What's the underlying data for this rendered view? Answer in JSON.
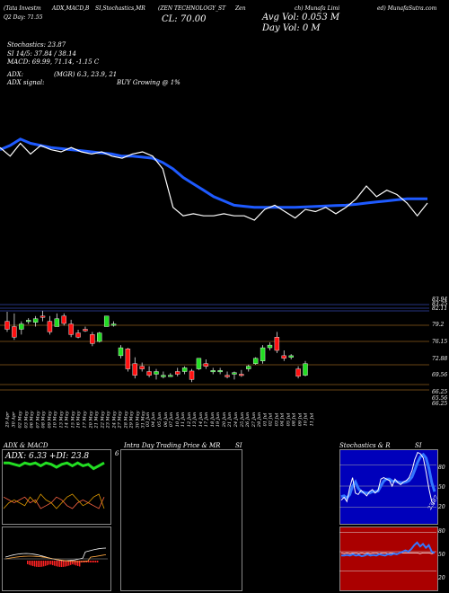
{
  "header": {
    "line1": [
      "(Tata Investm",
      "ADX,MACD,B",
      "SI,Stochastics,MR",
      "(ZEN TECHNOLOGY_ST",
      "Zen",
      "ch) Munafa Limi",
      "ed) MunafaSutra.com"
    ],
    "line2": "Q2  Day: 71.55",
    "cl": "CL: 70.00",
    "avg_vol": "Avg Vol: 0.053 M",
    "day_vol": "Day Vol: 0   M",
    "stochastics": "Stochastics: 23.87",
    "si": "SI 14/5: 37.84 / 38.14",
    "macd": "MACD: 69.99, 71.14, -1.15 C",
    "adx": "ADX:",
    "adx_mid": "(MGR) 6.3, 23.9, 21",
    "adx_signal": "ADX  signal:",
    "buy_text": "BUY Growing @ 1%"
  },
  "price_labels": [
    "83.94",
    "83.25",
    "82.11",
    "79.2",
    "76.15",
    "72.88",
    "69.56",
    "66.25",
    "65.56",
    "66.25"
  ],
  "date_labels": [
    "29 Apr",
    "30 Apr",
    "02 May",
    "03 May",
    "06 May",
    "07 May",
    "08 May",
    "09 May",
    "10 May",
    "13 May",
    "14 May",
    "15 May",
    "16 May",
    "17 May",
    "20 May",
    "21 May",
    "22 May",
    "23 May",
    "24 May",
    "27 May",
    "28 May",
    "29 May",
    "30 May",
    "31 May",
    "03 Jun",
    "04 Jun",
    "05 Jun",
    "06 Jun",
    "07 Jun",
    "10 Jun",
    "11 Jun",
    "12 Jun",
    "13 Jun",
    "14 Jun",
    "17 Jun",
    "18 Jun",
    "19 Jun",
    "20 Jun",
    "21 Jun",
    "24 Jun",
    "25 Jun",
    "26 Jun",
    "27 Jun",
    "28 Jun",
    "01 Jul",
    "02 Jul",
    "03 Jul",
    "04 Jul",
    "05 Jul",
    "08 Jul",
    "09 Jul",
    "10 Jul",
    "11 Jul"
  ],
  "panels": {
    "adx_title": "ADX  & MACD",
    "adx_values": "ADX: 6.33  +DI: 23.8",
    "intraday_title": "Intra  Day Trading Price  & MR",
    "intraday_si": "SI",
    "intraday_side": "6",
    "stoch_title": "Stochastics & R",
    "stoch_si": "SI",
    "stoch_ticks": [
      "80",
      "50",
      "20"
    ],
    "stoch_value": "23.87",
    "si_ticks": [
      "80",
      "50",
      "20"
    ]
  },
  "colors": {
    "up": "#22dd22",
    "down": "#ff1111",
    "ma": "#1e5aff",
    "line": "#ffffff",
    "grid": "#8a5a1a",
    "stoch_bg": "#0000bb",
    "si_bg": "#aa0000"
  },
  "chart_data": [
    {
      "type": "line",
      "name": "price-overview",
      "series": [
        {
          "values": [
            72.4,
            72.0,
            72.6,
            72.1,
            72.5,
            72.3,
            72.2,
            72.4,
            72.2,
            72.1,
            72.2,
            72.0,
            71.9,
            72.1,
            72.2,
            72.0,
            71.4,
            69.6,
            69.2,
            69.3,
            69.2,
            69.2,
            69.3,
            69.2,
            69.2,
            69.0,
            69.5,
            69.7,
            69.4,
            69.1,
            69.5,
            69.4,
            69.6,
            69.3,
            69.6,
            70.0,
            70.6,
            70.1,
            70.4,
            70.2,
            69.8,
            69.2,
            69.8
          ]
        },
        {
          "values": [
            72.3,
            72.5,
            72.8,
            72.6,
            72.5,
            72.4,
            72.35,
            72.3,
            72.25,
            72.2,
            72.15,
            72.1,
            72.0,
            72.0,
            71.95,
            71.9,
            71.7,
            71.4,
            71.0,
            70.7,
            70.4,
            70.1,
            69.9,
            69.7,
            69.65,
            69.6,
            69.6,
            69.6,
            69.6,
            69.6,
            69.62,
            69.64,
            69.66,
            69.68,
            69.7,
            69.74,
            69.8,
            69.85,
            69.9,
            69.95,
            70.0,
            70.0,
            70.0
          ]
        }
      ]
    },
    {
      "type": "bar",
      "name": "candles",
      "ohlc": [
        [
          80,
          81.8,
          78,
          78.5
        ],
        [
          79,
          81.5,
          76.5,
          77
        ],
        [
          78.5,
          80,
          77.5,
          79.5
        ],
        [
          80,
          80.6,
          79.5,
          80.2
        ],
        [
          79.8,
          81,
          79,
          80.5
        ],
        [
          81,
          82,
          80,
          80.8
        ],
        [
          80,
          81,
          77.5,
          78
        ],
        [
          79,
          81.5,
          79,
          80.5
        ],
        [
          81,
          81.5,
          79.2,
          79.6
        ],
        [
          79.5,
          80.3,
          77,
          77.5
        ],
        [
          77.8,
          78.4,
          76.8,
          77
        ],
        [
          78.5,
          79,
          78,
          78.2
        ],
        [
          77.5,
          78,
          75.3,
          75.8
        ],
        [
          76.2,
          78,
          76,
          77.8
        ],
        [
          79,
          81,
          79,
          81
        ],
        [
          79.5,
          80,
          79,
          79.5
        ],
        [
          73.5,
          75.5,
          73,
          75
        ],
        [
          74.8,
          75,
          70.5,
          71
        ],
        [
          72,
          73.2,
          69.2,
          69.8
        ],
        [
          71.5,
          72.2,
          70.5,
          71
        ],
        [
          70.5,
          71.5,
          69.4,
          69.8
        ],
        [
          70,
          71,
          69,
          70.5
        ],
        [
          69.5,
          70.5,
          69.2,
          69.8
        ],
        [
          69.8,
          70.2,
          69.5,
          69.8
        ],
        [
          70.5,
          71.2,
          69.6,
          70
        ],
        [
          70.5,
          71.5,
          70,
          71.2
        ],
        [
          70.6,
          71,
          68.5,
          69
        ],
        [
          71,
          73,
          70.8,
          73
        ],
        [
          72,
          72.8,
          71,
          71.5
        ],
        [
          70.5,
          71.2,
          70,
          70.7
        ],
        [
          70.5,
          71.2,
          70,
          70.7
        ],
        [
          69.8,
          70.5,
          69.2,
          69.5
        ],
        [
          70,
          70.5,
          69,
          70.3
        ],
        [
          70,
          70.8,
          69.5,
          69.8
        ],
        [
          71,
          71.8,
          70.5,
          71.5
        ],
        [
          72,
          73.2,
          71.8,
          73
        ],
        [
          72.5,
          75.5,
          72,
          75
        ],
        [
          75,
          76,
          74.5,
          75.5
        ],
        [
          77,
          78,
          74,
          74.5
        ],
        [
          73.5,
          74.5,
          72.5,
          73
        ],
        [
          73.2,
          73.8,
          72.8,
          73.5
        ],
        [
          71,
          71.5,
          69.2,
          69.6
        ],
        [
          69.8,
          72.5,
          69.6,
          72
        ]
      ]
    },
    {
      "type": "line",
      "name": "adx",
      "series": [
        {
          "values": [
            34,
            34,
            33.5,
            33,
            34,
            33.5,
            34,
            33,
            34,
            33.5,
            32.5,
            33.5,
            34,
            33,
            34,
            33,
            33.5,
            32,
            33,
            34
          ]
        },
        {
          "values": [
            24,
            23,
            22,
            23,
            24,
            22,
            23,
            20,
            21,
            22,
            24,
            23,
            21,
            20,
            22,
            23,
            22,
            21,
            20,
            24
          ]
        },
        {
          "values": [
            20,
            22,
            23,
            22,
            21,
            24,
            22,
            25,
            23,
            22,
            20,
            22,
            24,
            25,
            23,
            21,
            22,
            24,
            25,
            20
          ]
        }
      ]
    },
    {
      "type": "line",
      "name": "stochastics",
      "series": [
        {
          "values": [
            30,
            34,
            28,
            48,
            62,
            40,
            38,
            44,
            40,
            36,
            42,
            45,
            40,
            44,
            60,
            62,
            60,
            58,
            50,
            60,
            55,
            52,
            56,
            58,
            62,
            72,
            88,
            98,
            96,
            90,
            70,
            46,
            28,
            23.87
          ]
        },
        {
          "values": [
            35,
            36,
            33,
            38,
            50,
            56,
            47,
            42,
            41,
            40,
            40,
            42,
            42,
            43,
            50,
            57,
            60,
            60,
            57,
            57,
            56,
            55,
            55,
            56,
            58,
            63,
            73,
            84,
            92,
            95,
            90,
            75,
            55,
            42
          ]
        }
      ]
    },
    {
      "type": "line",
      "name": "si",
      "series": [
        {
          "values": [
            44,
            44,
            45,
            44,
            46,
            44,
            45,
            43,
            44,
            46,
            44,
            45,
            44,
            46,
            45,
            44,
            46,
            45,
            47,
            46,
            48,
            50,
            52,
            50,
            54,
            60,
            64,
            58,
            62,
            56,
            60,
            50,
            48
          ]
        },
        {
          "values": [
            48,
            47,
            48,
            47,
            48,
            48,
            47,
            48,
            47,
            48,
            47,
            48,
            48,
            47,
            48,
            48,
            47,
            48,
            48,
            47,
            48,
            48,
            48,
            48,
            48,
            48,
            48,
            47,
            48,
            48,
            48,
            47,
            48
          ]
        }
      ]
    }
  ]
}
